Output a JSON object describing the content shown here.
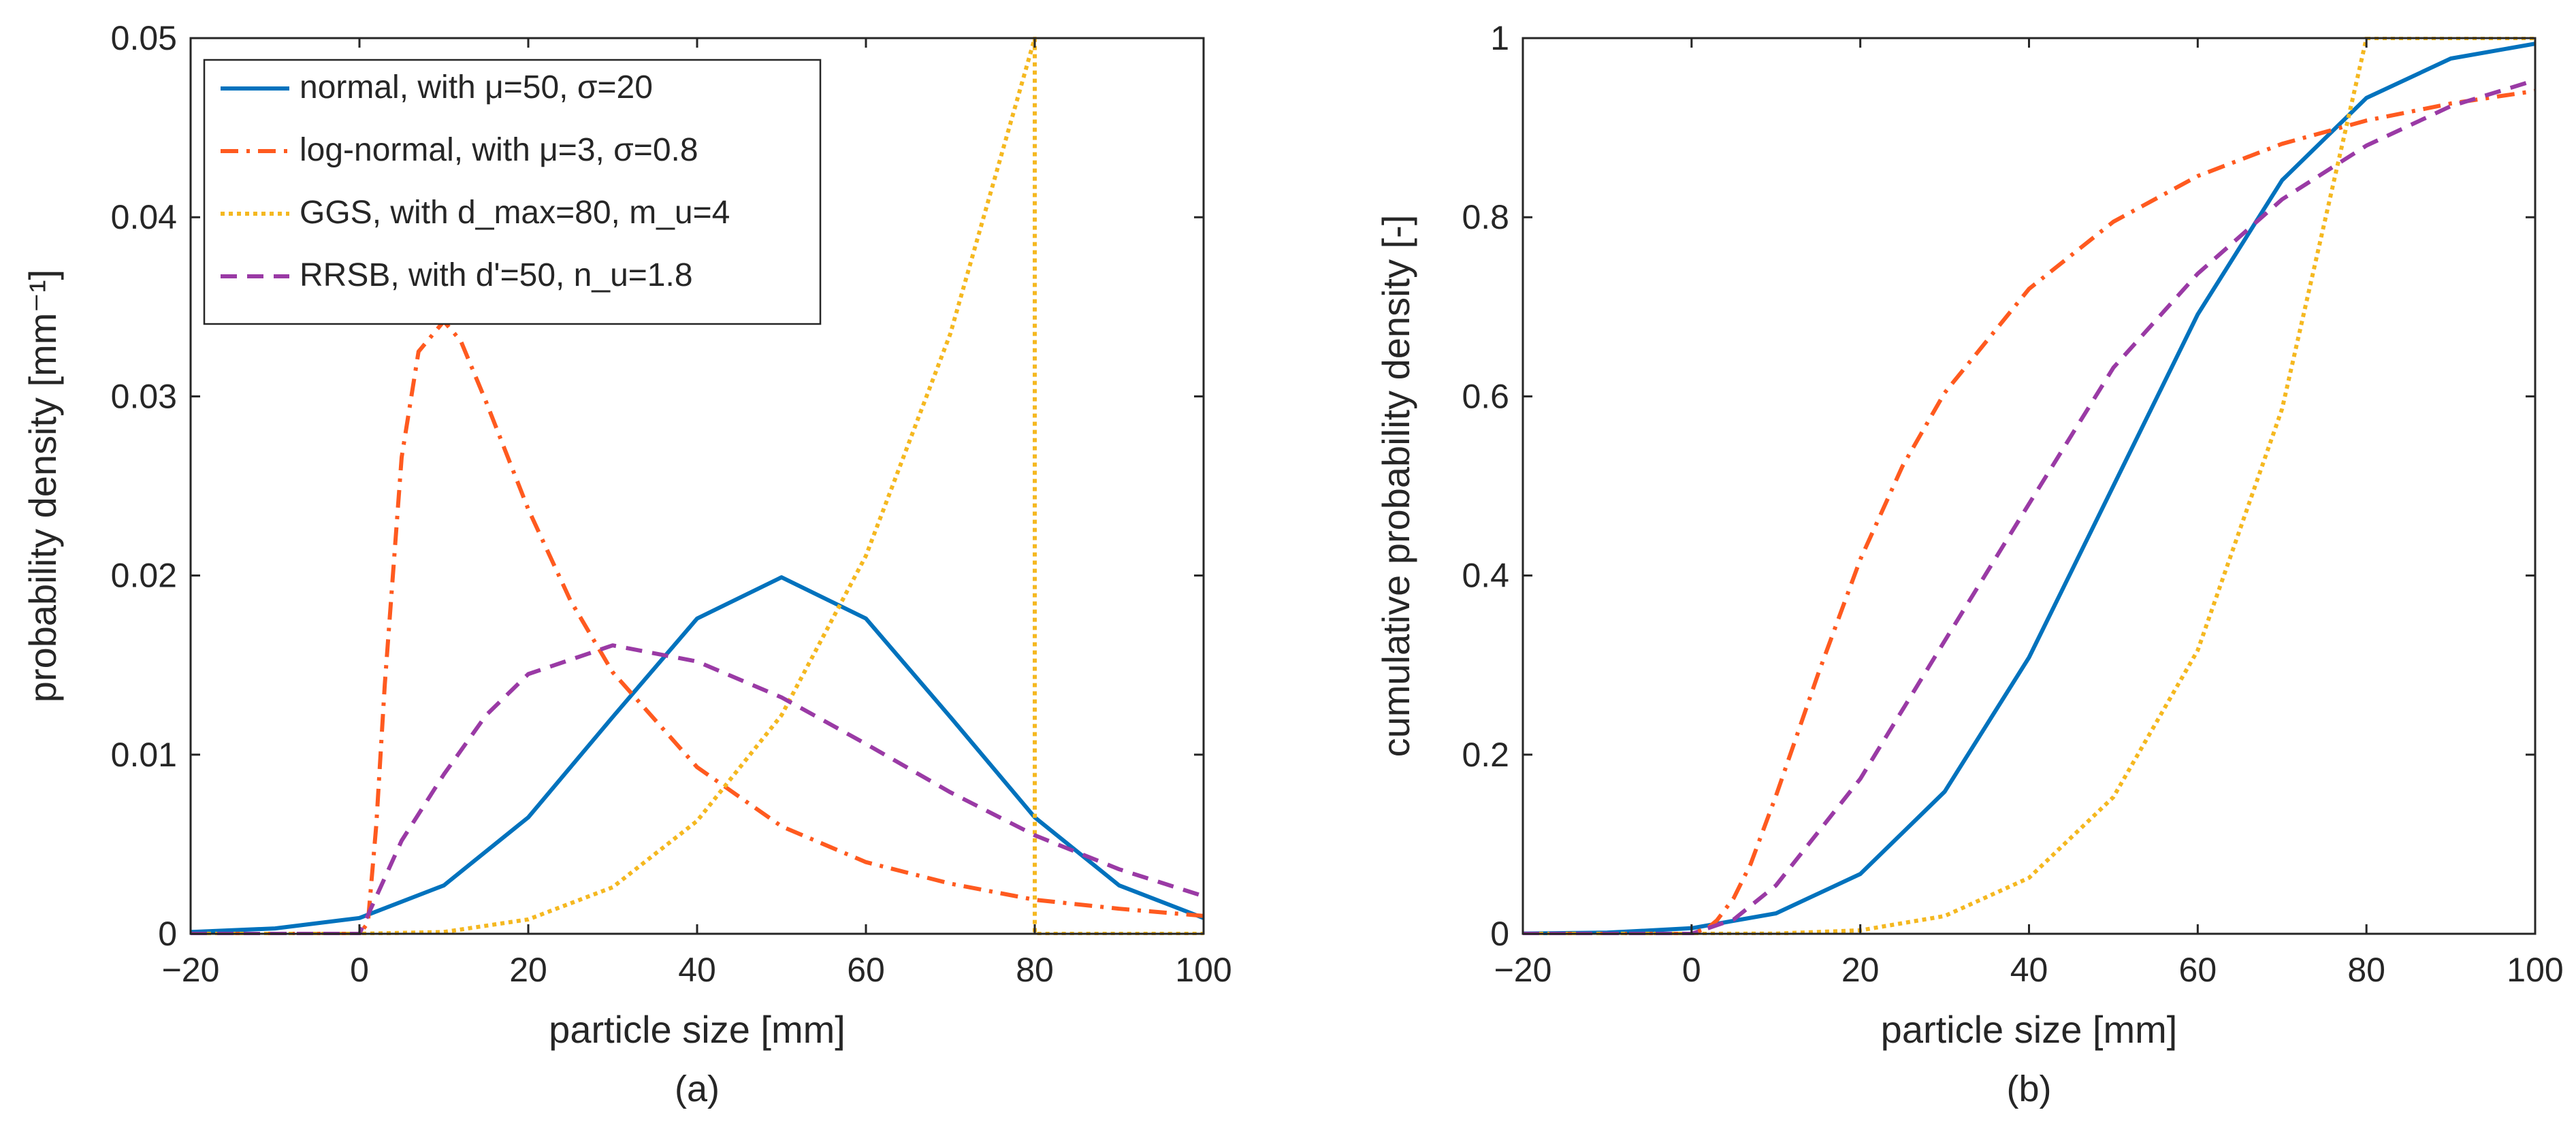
{
  "chart_data": [
    {
      "type": "line",
      "panel_label": "(a)",
      "xlabel": "particle size [mm]",
      "ylabel": "probability density [mm⁻¹]",
      "xlim": [
        -20,
        100
      ],
      "ylim": [
        0,
        0.05
      ],
      "xticks": [
        -20,
        0,
        20,
        40,
        60,
        80,
        100
      ],
      "xtick_labels": [
        "−20",
        "0",
        "20",
        "40",
        "60",
        "80",
        "100"
      ],
      "yticks": [
        0,
        0.01,
        0.02,
        0.03,
        0.04,
        0.05
      ],
      "ytick_labels": [
        "0",
        "0.01",
        "0.02",
        "0.03",
        "0.04",
        "0.05"
      ],
      "grid": false,
      "legend_position": "top-left",
      "series": [
        {
          "name": "normal, with μ=50, σ=20",
          "color": "#0072BD",
          "dash": "solid",
          "x": [
            -20,
            -10,
            0,
            10,
            20,
            30,
            40,
            50,
            60,
            70,
            80,
            90,
            100
          ],
          "y": [
            0.0001,
            0.0003,
            0.00088,
            0.0027,
            0.0065,
            0.0121,
            0.0176,
            0.0199,
            0.0176,
            0.0121,
            0.0065,
            0.0027,
            0.00088
          ]
        },
        {
          "name": "log-normal, with μ=3, σ=0.8",
          "color": "#FF5A1F",
          "dash": "dash-dot",
          "x": [
            -20,
            0,
            1,
            2,
            3,
            5,
            7,
            10,
            12,
            15,
            20,
            25,
            30,
            40,
            50,
            60,
            70,
            80,
            90,
            100
          ],
          "y": [
            0,
            0,
            0.0006,
            0.0061,
            0.0139,
            0.0266,
            0.0325,
            0.0342,
            0.0331,
            0.0297,
            0.0237,
            0.0186,
            0.0146,
            0.0093,
            0.006,
            0.004,
            0.0028,
            0.0019,
            0.0014,
            0.001
          ]
        },
        {
          "name": "GGS, with d_max=80, m_u=4",
          "color": "#F5B820",
          "dash": "dotted",
          "x": [
            -20,
            0,
            10,
            20,
            30,
            40,
            50,
            60,
            70,
            80,
            80,
            100
          ],
          "y": [
            0,
            0,
            0.0001,
            0.0008,
            0.0026,
            0.0063,
            0.0122,
            0.0211,
            0.0335,
            0.05,
            0,
            0
          ]
        },
        {
          "name": "RRSB, with d'=50, n_u=1.8",
          "color": "#9A3AA5",
          "dash": "dashed",
          "x": [
            -20,
            0,
            5,
            10,
            15,
            20,
            30,
            40,
            50,
            60,
            70,
            80,
            90,
            100
          ],
          "y": [
            0,
            0,
            0.0052,
            0.0089,
            0.0122,
            0.0145,
            0.0161,
            0.0152,
            0.0132,
            0.0106,
            0.0079,
            0.0055,
            0.0036,
            0.0021
          ]
        }
      ]
    },
    {
      "type": "line",
      "panel_label": "(b)",
      "xlabel": "particle size [mm]",
      "ylabel": "cumulative probability density [-]",
      "xlim": [
        -20,
        100
      ],
      "ylim": [
        0,
        1
      ],
      "xticks": [
        -20,
        0,
        20,
        40,
        60,
        80,
        100
      ],
      "xtick_labels": [
        "−20",
        "0",
        "20",
        "40",
        "60",
        "80",
        "100"
      ],
      "yticks": [
        0,
        0.2,
        0.4,
        0.6,
        0.8,
        1
      ],
      "ytick_labels": [
        "0",
        "0.2",
        "0.4",
        "0.6",
        "0.8",
        "1"
      ],
      "grid": false,
      "series": [
        {
          "name": "normal",
          "color": "#0072BD",
          "dash": "solid",
          "x": [
            -20,
            -10,
            0,
            10,
            20,
            30,
            40,
            50,
            60,
            70,
            80,
            90,
            100
          ],
          "y": [
            0.0003,
            0.0013,
            0.0062,
            0.0228,
            0.0668,
            0.1587,
            0.3085,
            0.5,
            0.6915,
            0.8413,
            0.9332,
            0.9772,
            0.9938
          ]
        },
        {
          "name": "log-normal",
          "color": "#FF5A1F",
          "dash": "dash-dot",
          "x": [
            -20,
            0,
            2,
            3,
            5,
            7,
            10,
            15,
            20,
            25,
            30,
            40,
            50,
            60,
            70,
            80,
            90,
            100
          ],
          "y": [
            0,
            0,
            0.007,
            0.015,
            0.04,
            0.078,
            0.154,
            0.29,
            0.418,
            0.522,
            0.604,
            0.72,
            0.795,
            0.846,
            0.882,
            0.908,
            0.927,
            0.941
          ]
        },
        {
          "name": "GGS",
          "color": "#F5B820",
          "dash": "dotted",
          "x": [
            -20,
            0,
            10,
            20,
            30,
            40,
            50,
            60,
            70,
            80,
            100
          ],
          "y": [
            0,
            0,
            0.0002,
            0.0039,
            0.0198,
            0.0625,
            0.1526,
            0.3164,
            0.5862,
            1,
            1
          ]
        },
        {
          "name": "RRSB",
          "color": "#9A3AA5",
          "dash": "dashed",
          "x": [
            -20,
            0,
            5,
            10,
            20,
            30,
            40,
            50,
            60,
            70,
            80,
            90,
            100
          ],
          "y": [
            0,
            0,
            0.016,
            0.054,
            0.173,
            0.327,
            0.48,
            0.632,
            0.737,
            0.82,
            0.88,
            0.924,
            0.953
          ]
        }
      ]
    }
  ]
}
